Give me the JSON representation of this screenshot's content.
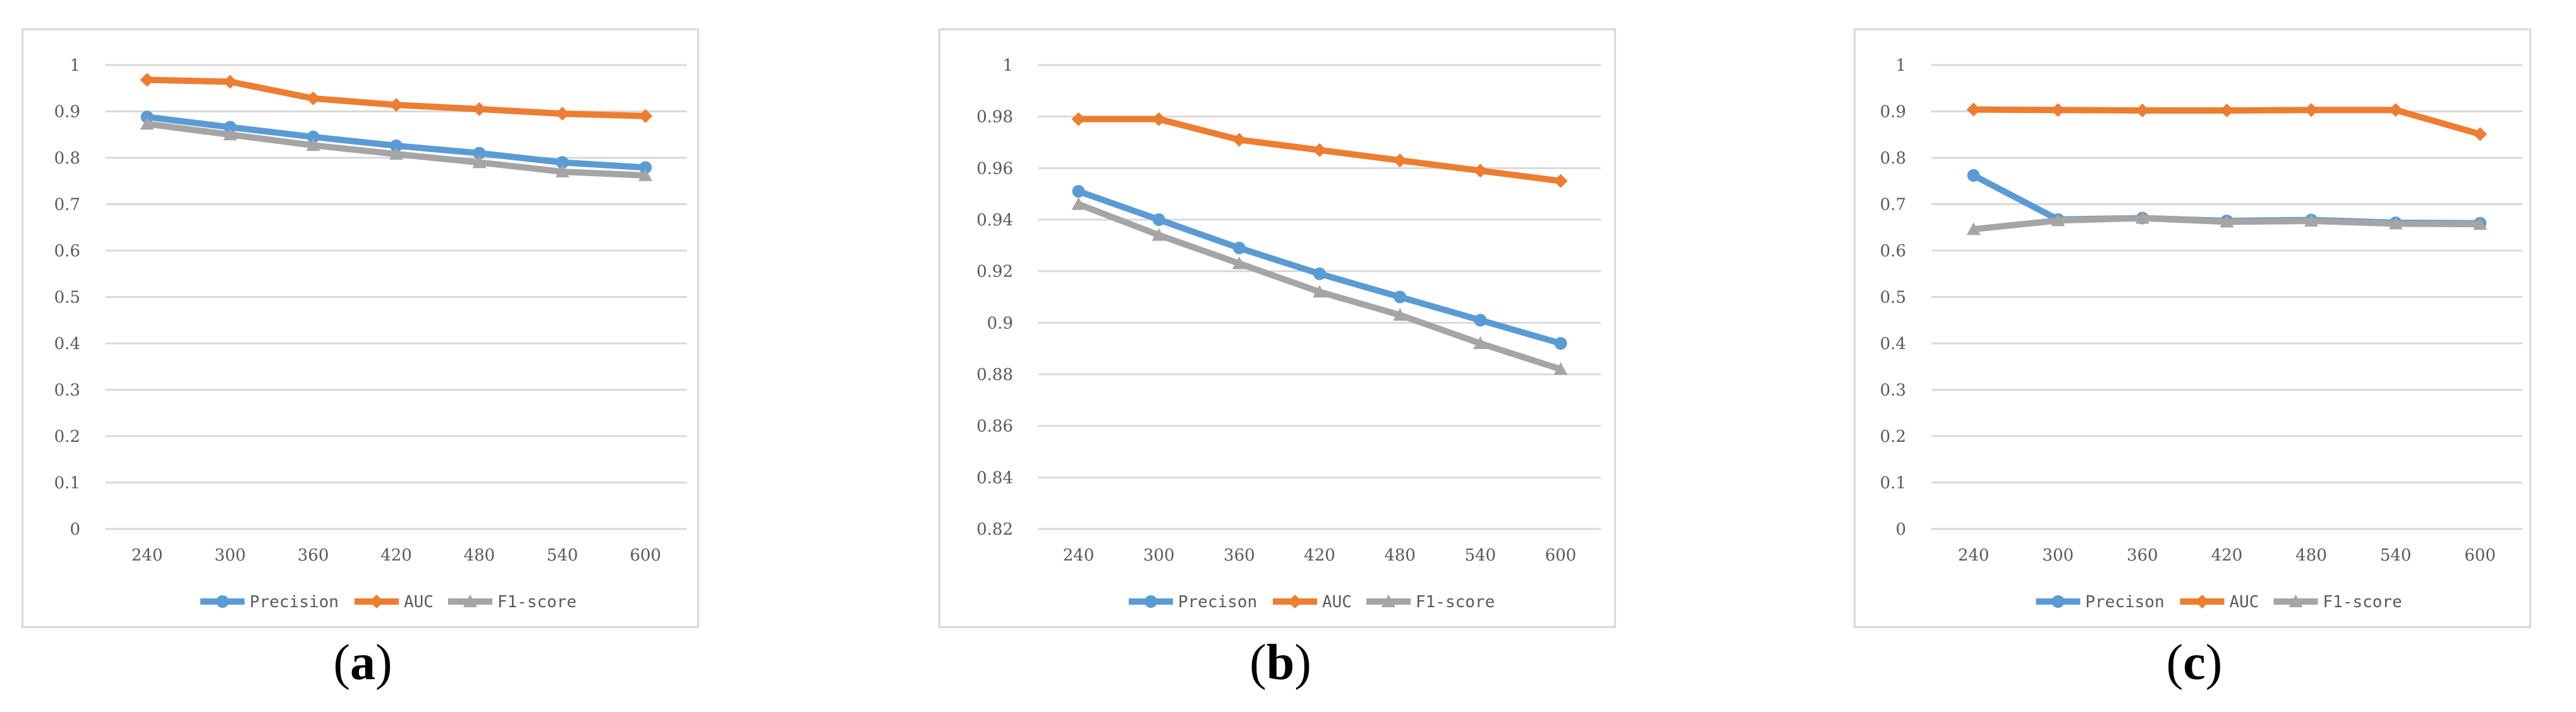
{
  "chart_data": [
    {
      "id": "a",
      "type": "line",
      "caption": "a",
      "x": [
        240,
        300,
        360,
        420,
        480,
        540,
        600
      ],
      "yticks": [
        "1",
        "0.9",
        "0.8",
        "0.7",
        "0.6",
        "0.5",
        "0.4",
        "0.3",
        "0.2",
        "0.1",
        "0"
      ],
      "ylim": [
        0,
        1
      ],
      "grid": true,
      "legend_position": "bottom",
      "series": [
        {
          "name": "Precision",
          "color": "#5b9bd5",
          "marker": "circle",
          "values": [
            0.888,
            0.866,
            0.845,
            0.826,
            0.81,
            0.79,
            0.779
          ]
        },
        {
          "name": "AUC",
          "color": "#ed7d31",
          "marker": "diamond",
          "values": [
            0.968,
            0.964,
            0.928,
            0.914,
            0.905,
            0.895,
            0.89
          ]
        },
        {
          "name": "F1-score",
          "color": "#a5a5a5",
          "marker": "triangle",
          "values": [
            0.873,
            0.85,
            0.827,
            0.808,
            0.79,
            0.77,
            0.762
          ]
        }
      ]
    },
    {
      "id": "b",
      "type": "line",
      "caption": "b",
      "x": [
        240,
        300,
        360,
        420,
        480,
        540,
        600
      ],
      "yticks": [
        "1",
        "0.98",
        "0.96",
        "0.94",
        "0.92",
        "0.9",
        "0.88",
        "0.86",
        "0.84",
        "0.82"
      ],
      "ylim": [
        0.82,
        1
      ],
      "grid": true,
      "legend_position": "bottom",
      "series": [
        {
          "name": "Precison",
          "color": "#5b9bd5",
          "marker": "circle",
          "values": [
            0.951,
            0.94,
            0.929,
            0.919,
            0.91,
            0.901,
            0.892
          ]
        },
        {
          "name": "AUC",
          "color": "#ed7d31",
          "marker": "diamond",
          "values": [
            0.979,
            0.979,
            0.971,
            0.967,
            0.963,
            0.959,
            0.955
          ]
        },
        {
          "name": "F1-score",
          "color": "#a5a5a5",
          "marker": "triangle",
          "values": [
            0.946,
            0.934,
            0.923,
            0.912,
            0.903,
            0.892,
            0.882
          ]
        }
      ]
    },
    {
      "id": "c",
      "type": "line",
      "caption": "c",
      "x": [
        240,
        300,
        360,
        420,
        480,
        540,
        600
      ],
      "yticks": [
        "1",
        "0.9",
        "0.8",
        "0.7",
        "0.6",
        "0.5",
        "0.4",
        "0.3",
        "0.2",
        "0.1",
        "0"
      ],
      "ylim": [
        0,
        1
      ],
      "grid": true,
      "legend_position": "bottom",
      "series": [
        {
          "name": "Precison",
          "color": "#5b9bd5",
          "marker": "circle",
          "values": [
            0.762,
            0.667,
            0.67,
            0.664,
            0.666,
            0.66,
            0.659
          ]
        },
        {
          "name": "AUC",
          "color": "#ed7d31",
          "marker": "diamond",
          "values": [
            0.904,
            0.903,
            0.902,
            0.902,
            0.903,
            0.903,
            0.851
          ]
        },
        {
          "name": "F1-score",
          "color": "#a5a5a5",
          "marker": "triangle",
          "values": [
            0.646,
            0.665,
            0.67,
            0.662,
            0.664,
            0.658,
            0.657
          ]
        }
      ]
    }
  ]
}
